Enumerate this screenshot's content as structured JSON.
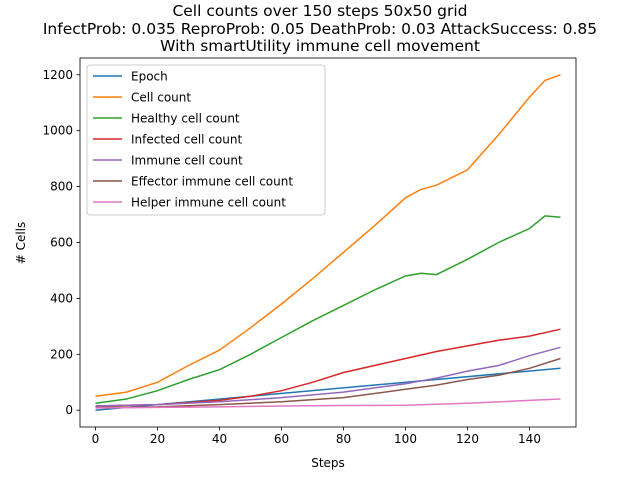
{
  "chart_data": {
    "type": "line",
    "title_lines": [
      "Cell counts over 150 steps 50x50 grid",
      "InfectProb: 0.035 ReproProb: 0.05 DeathProb: 0.03 AttackSuccess: 0.85",
      "With smartUtility immune cell movement"
    ],
    "xlabel": "Steps",
    "ylabel": "# Cells",
    "xlim": [
      -5,
      155
    ],
    "ylim": [
      -60,
      1260
    ],
    "xticks": [
      0,
      20,
      40,
      60,
      80,
      100,
      120,
      140
    ],
    "yticks": [
      0,
      200,
      400,
      600,
      800,
      1000,
      1200
    ],
    "legend_position": "upper-left",
    "series": [
      {
        "name": "Epoch",
        "color": "#1f77b4",
        "x": [
          0,
          150
        ],
        "y": [
          0,
          150
        ]
      },
      {
        "name": "Cell count",
        "color": "#ff7f0e",
        "x": [
          0,
          10,
          20,
          30,
          40,
          50,
          60,
          70,
          80,
          90,
          100,
          105,
          110,
          120,
          130,
          140,
          145,
          150
        ],
        "y": [
          50,
          65,
          100,
          160,
          215,
          295,
          380,
          470,
          565,
          660,
          760,
          790,
          805,
          860,
          985,
          1120,
          1180,
          1200
        ]
      },
      {
        "name": "Healthy cell count",
        "color": "#2ca02c",
        "x": [
          0,
          10,
          20,
          30,
          40,
          50,
          60,
          70,
          80,
          90,
          100,
          105,
          110,
          120,
          130,
          140,
          145,
          150
        ],
        "y": [
          25,
          40,
          70,
          110,
          145,
          200,
          260,
          320,
          375,
          430,
          480,
          490,
          485,
          540,
          600,
          650,
          695,
          690
        ]
      },
      {
        "name": "Infected cell count",
        "color": "#d62728",
        "x": [
          0,
          20,
          40,
          50,
          60,
          70,
          80,
          90,
          100,
          110,
          120,
          130,
          140,
          150
        ],
        "y": [
          15,
          20,
          35,
          50,
          70,
          100,
          135,
          160,
          185,
          210,
          230,
          250,
          265,
          290
        ]
      },
      {
        "name": "Immune cell count",
        "color": "#9467bd",
        "x": [
          0,
          20,
          40,
          60,
          80,
          100,
          110,
          120,
          130,
          140,
          150
        ],
        "y": [
          15,
          20,
          30,
          45,
          65,
          95,
          115,
          140,
          160,
          195,
          225
        ]
      },
      {
        "name": "Effector immune cell count",
        "color": "#8c564b",
        "x": [
          0,
          20,
          40,
          60,
          80,
          100,
          110,
          120,
          130,
          140,
          150
        ],
        "y": [
          10,
          12,
          20,
          30,
          45,
          75,
          90,
          110,
          125,
          150,
          185
        ]
      },
      {
        "name": "Helper immune cell count",
        "color": "#e377c2",
        "x": [
          0,
          20,
          40,
          60,
          80,
          100,
          120,
          140,
          150
        ],
        "y": [
          8,
          10,
          12,
          15,
          17,
          18,
          25,
          35,
          40
        ]
      }
    ]
  }
}
